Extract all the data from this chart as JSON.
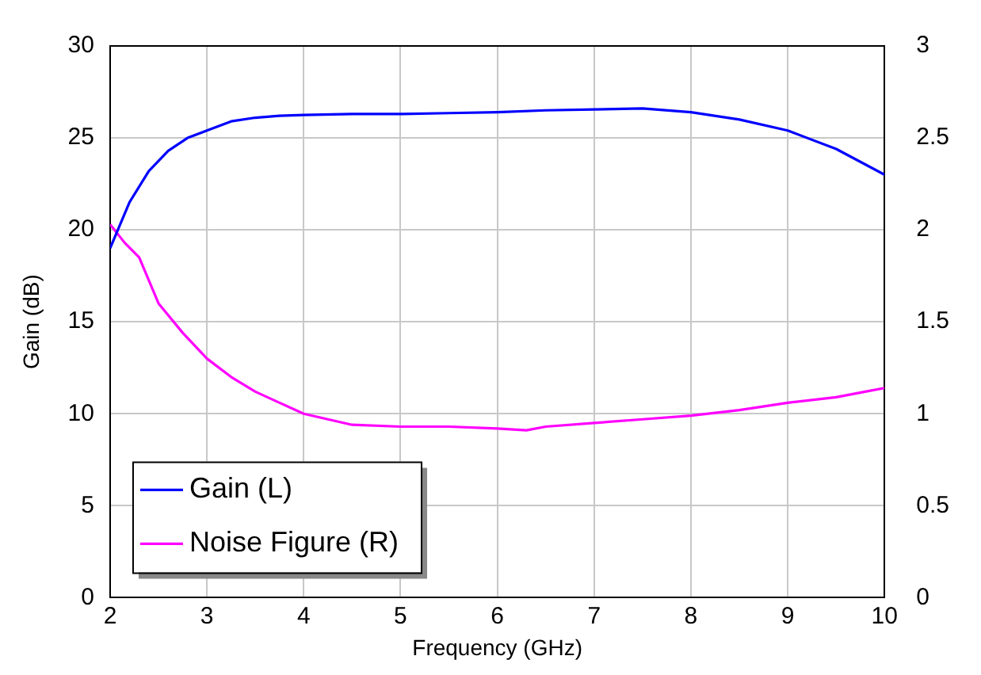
{
  "chart_data": {
    "type": "line",
    "xlabel": "Frequency (GHz)",
    "ylabel": "Gain (dB)",
    "xlim": [
      2,
      10
    ],
    "xticks": [
      2,
      3,
      4,
      5,
      6,
      7,
      8,
      9,
      10
    ],
    "ylim": [
      0,
      30
    ],
    "yticks": [
      0,
      5,
      10,
      15,
      20,
      25,
      30
    ],
    "y2lim": [
      0,
      3
    ],
    "y2ticks": [
      0,
      0.5,
      1,
      1.5,
      2,
      2.5,
      3
    ],
    "grid": true,
    "legend": "bottom left",
    "marker": "none",
    "line_style": "solid",
    "series": [
      {
        "name": "Gain (L)",
        "color": "#0000ff",
        "x": [
          2,
          2.2,
          2.4,
          2.6,
          2.8,
          3,
          3.25,
          3.5,
          3.75,
          4,
          4.5,
          5,
          5.5,
          6,
          6.5,
          7,
          7.5,
          8,
          8.5,
          9,
          9.5,
          10
        ],
        "values": [
          19,
          21.5,
          23.2,
          24.3,
          25,
          25.4,
          25.9,
          26.1,
          26.2,
          26.25,
          26.3,
          26.3,
          26.35,
          26.4,
          26.5,
          26.55,
          26.6,
          26.4,
          26,
          25.4,
          24.4,
          23
        ]
      },
      {
        "name": "Noise Figure (R)",
        "color": "#ff00ff",
        "axis": "y2",
        "x": [
          2,
          2.15,
          2.3,
          2.5,
          2.75,
          3,
          3.25,
          3.5,
          3.75,
          4,
          4.5,
          5,
          5.5,
          6,
          6.3,
          6.5,
          7,
          7.5,
          8,
          8.5,
          9,
          9.5,
          9.8,
          10
        ],
        "values": [
          2.03,
          1.93,
          1.85,
          1.6,
          1.44,
          1.3,
          1.2,
          1.12,
          1.06,
          1.0,
          0.94,
          0.93,
          0.93,
          0.92,
          0.91,
          0.93,
          0.95,
          0.97,
          0.99,
          1.02,
          1.06,
          1.09,
          1.12,
          1.14
        ]
      }
    ]
  }
}
